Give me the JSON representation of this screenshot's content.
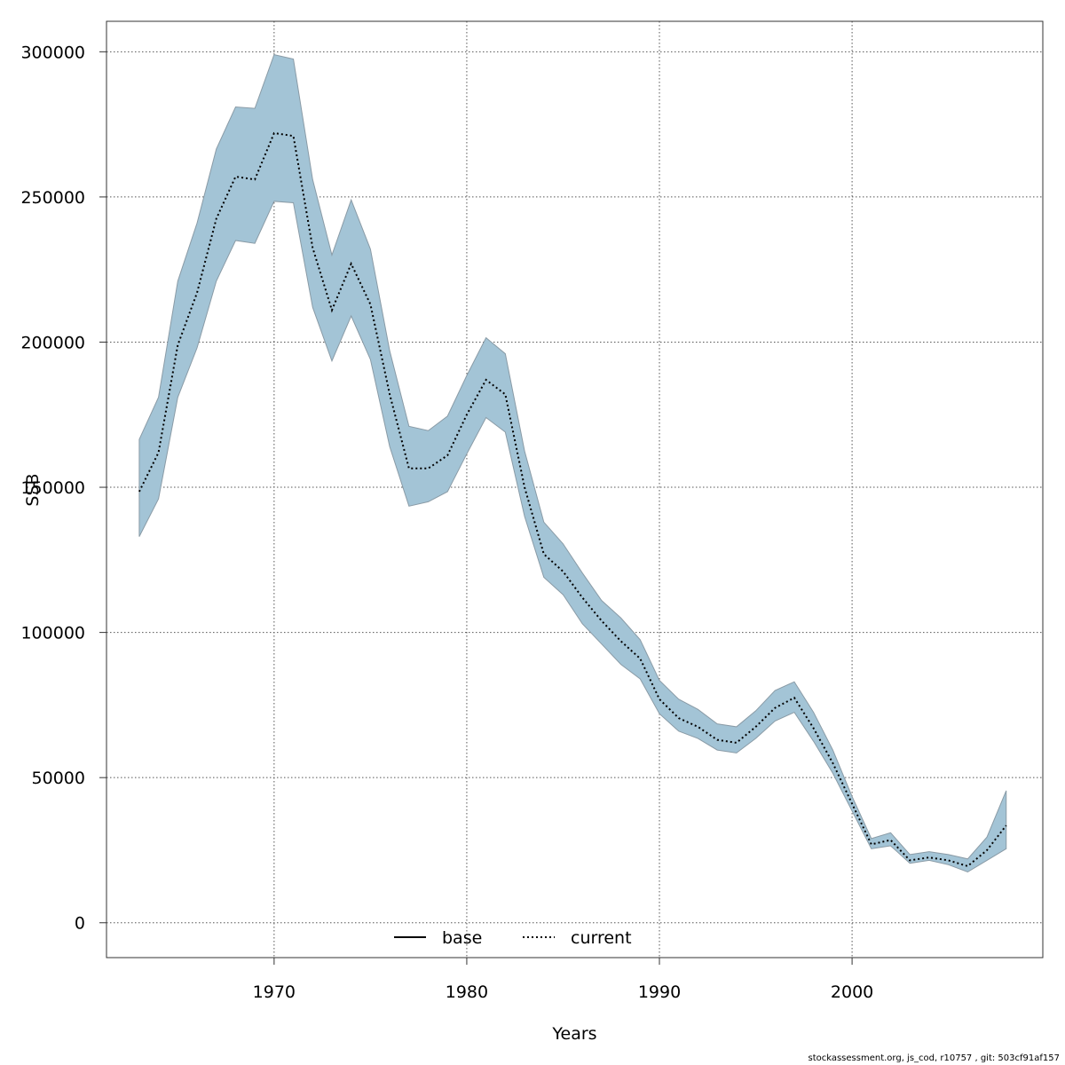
{
  "footer_text": "stockassessment.org, js_cod, r10757 , git: 503cf91af157",
  "chart_data": {
    "type": "area",
    "title": "",
    "xlabel": "Years",
    "ylabel": "SSB",
    "xlim": [
      1961.3,
      2009.9
    ],
    "ylim": [
      -12000,
      310500
    ],
    "xticks": [
      1970,
      1980,
      1990,
      2000
    ],
    "yticks": [
      0,
      50000,
      100000,
      150000,
      200000,
      250000,
      300000
    ],
    "grid": true,
    "legend": {
      "placement": "bottom",
      "entries": [
        {
          "label": "base",
          "style": "solid",
          "color": "#000000"
        },
        {
          "label": "current",
          "style": "dotted",
          "color": "#000000"
        }
      ]
    },
    "band_color": "#a3c4d6",
    "x": [
      1963,
      1964,
      1965,
      1966,
      1967,
      1968,
      1969,
      1970,
      1971,
      1972,
      1973,
      1974,
      1975,
      1976,
      1977,
      1978,
      1979,
      1980,
      1981,
      1982,
      1983,
      1984,
      1985,
      1986,
      1987,
      1988,
      1989,
      1990,
      1991,
      1992,
      1993,
      1994,
      1995,
      1996,
      1997,
      1998,
      1999,
      2000,
      2001,
      2002,
      2003,
      2004,
      2005,
      2006,
      2007,
      2008
    ],
    "series": [
      {
        "name": "current",
        "values": [
          148500,
          162000,
          199000,
          217000,
          242500,
          257000,
          256000,
          272000,
          271000,
          232500,
          211000,
          227000,
          213000,
          182000,
          156500,
          156500,
          161000,
          175000,
          187000,
          182000,
          150000,
          127000,
          121000,
          112000,
          104000,
          97000,
          91000,
          77000,
          70500,
          67500,
          63000,
          62000,
          67500,
          74000,
          77500,
          67000,
          55000,
          41000,
          27000,
          28500,
          21500,
          22500,
          21500,
          19500,
          25000,
          33500
        ],
        "lower": [
          133000,
          146000,
          181000,
          198000,
          221000,
          235000,
          234000,
          248500,
          248000,
          212000,
          193500,
          209000,
          194000,
          164000,
          143500,
          145000,
          148500,
          161500,
          174000,
          169000,
          140000,
          119000,
          113000,
          103000,
          96000,
          89000,
          84000,
          72000,
          66000,
          63500,
          59500,
          58500,
          63500,
          69500,
          72500,
          62500,
          51500,
          38500,
          25500,
          26500,
          20500,
          21500,
          20000,
          17500,
          21500,
          25500
        ],
        "upper": [
          166500,
          181000,
          221000,
          241000,
          266500,
          281000,
          280500,
          299000,
          297500,
          256000,
          230000,
          249000,
          232000,
          197000,
          171000,
          169500,
          174500,
          188500,
          201500,
          196000,
          162500,
          138000,
          130500,
          120500,
          111000,
          105000,
          97500,
          83500,
          77000,
          73500,
          68500,
          67500,
          73000,
          80000,
          83000,
          72500,
          59500,
          43500,
          29000,
          31000,
          23500,
          24500,
          23500,
          22000,
          29500,
          45500
        ]
      }
    ]
  }
}
